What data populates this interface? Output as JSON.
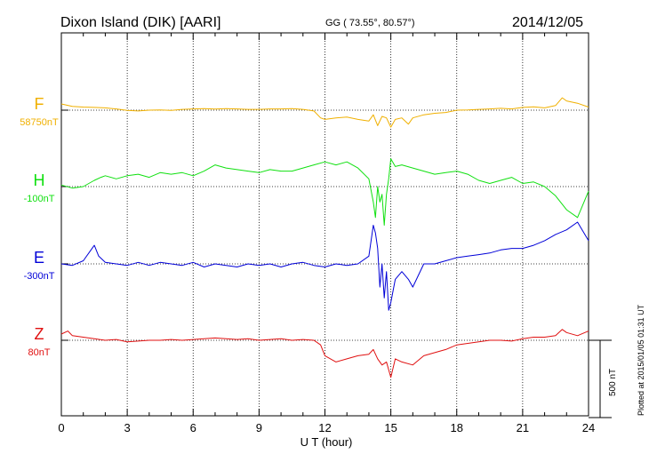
{
  "header": {
    "station": "Dixon Island (DIK)  [AARI]",
    "coords": "GG ( 73.55°,  80.57°)",
    "date": "2014/12/05"
  },
  "plotted_note": "Plotted at 2015/01/05 01:31  UT",
  "scale_label": "500 nT",
  "colors": {
    "F": "#f0b000",
    "H": "#10e010",
    "E": "#0000d8",
    "Z": "#e01010"
  },
  "chart_data": {
    "type": "line",
    "title": "Dixon Island (DIK)  [AARI]",
    "xlabel": "U T (hour)",
    "ylabel": "",
    "xlim": [
      0,
      24
    ],
    "xticks": [
      "0",
      "3",
      "6",
      "9",
      "12",
      "15",
      "18",
      "21",
      "24"
    ],
    "scale_nT": 500,
    "series": [
      {
        "name": "F",
        "baseline_label": "58750nT",
        "baseline": 58750,
        "x": [
          0,
          0.5,
          1,
          1.5,
          2,
          2.5,
          3,
          3.5,
          4,
          4.5,
          5,
          5.5,
          6,
          6.5,
          7,
          7.5,
          8,
          8.5,
          9,
          9.5,
          10,
          10.5,
          11,
          11.5,
          11.8,
          12,
          12.5,
          13,
          13.5,
          14,
          14.2,
          14.4,
          14.6,
          14.8,
          15,
          15.2,
          15.5,
          15.8,
          16,
          16.5,
          17,
          17.5,
          18,
          18.5,
          19,
          19.5,
          20,
          20.5,
          21,
          21.5,
          22,
          22.5,
          22.8,
          23,
          23.5,
          24
        ],
        "values": [
          58790,
          58775,
          58770,
          58768,
          58765,
          58758,
          58748,
          58745,
          58750,
          58752,
          58748,
          58755,
          58758,
          58760,
          58757,
          58760,
          58758,
          58755,
          58755,
          58758,
          58758,
          58760,
          58755,
          58745,
          58700,
          58690,
          58700,
          58705,
          58690,
          58680,
          58720,
          58650,
          58710,
          58700,
          58640,
          58690,
          58700,
          58660,
          58700,
          58720,
          58730,
          58735,
          58750,
          58752,
          58755,
          58758,
          58762,
          58758,
          58768,
          58772,
          58765,
          58780,
          58830,
          58810,
          58795,
          58770
        ]
      },
      {
        "name": "H",
        "baseline_label": "-100nT",
        "baseline": -100,
        "x": [
          0,
          0.5,
          1,
          1.5,
          1.8,
          2,
          2.5,
          3,
          3.5,
          4,
          4.5,
          5,
          5.5,
          6,
          6.5,
          7,
          7.5,
          8,
          8.5,
          9,
          9.5,
          10,
          10.5,
          11,
          11.5,
          12,
          12.5,
          13,
          13.5,
          14,
          14.2,
          14.3,
          14.4,
          14.5,
          14.6,
          14.7,
          14.8,
          14.9,
          15,
          15.2,
          15.5,
          16,
          16.5,
          17,
          17.5,
          18,
          18.5,
          19,
          19.5,
          20,
          20.5,
          21,
          21.5,
          22,
          22.5,
          23,
          23.5,
          24
        ],
        "values": [
          -90,
          -110,
          -100,
          -60,
          -40,
          -30,
          -50,
          -30,
          -20,
          -40,
          -10,
          -20,
          -10,
          -30,
          0,
          40,
          20,
          10,
          0,
          -10,
          10,
          0,
          0,
          20,
          40,
          60,
          40,
          60,
          20,
          -50,
          -200,
          -300,
          -100,
          -200,
          -150,
          -350,
          -150,
          -50,
          80,
          30,
          40,
          20,
          0,
          -20,
          -10,
          0,
          -20,
          -60,
          -80,
          -60,
          -40,
          -80,
          -70,
          -100,
          -160,
          -250,
          -300,
          -130
        ]
      },
      {
        "name": "E",
        "baseline_label": "-300nT",
        "baseline": -300,
        "x": [
          0,
          0.5,
          1,
          1.3,
          1.5,
          1.7,
          2,
          2.5,
          3,
          3.5,
          4,
          4.5,
          5,
          5.5,
          6,
          6.5,
          7,
          7.5,
          8,
          8.5,
          9,
          9.5,
          10,
          10.5,
          11,
          11.5,
          12,
          12.5,
          13,
          13.5,
          14,
          14.2,
          14.3,
          14.4,
          14.5,
          14.6,
          14.7,
          14.8,
          14.9,
          15,
          15.2,
          15.5,
          15.8,
          16,
          16.5,
          17,
          17.5,
          18,
          18.5,
          19,
          19.5,
          20,
          20.5,
          21,
          21.5,
          22,
          22.5,
          23,
          23.5,
          24
        ],
        "values": [
          -300,
          -310,
          -280,
          -220,
          -180,
          -250,
          -290,
          -300,
          -310,
          -290,
          -310,
          -290,
          -300,
          -310,
          -290,
          -320,
          -300,
          -310,
          -320,
          -300,
          -310,
          -300,
          -320,
          -300,
          -290,
          -310,
          -320,
          -300,
          -310,
          -300,
          -250,
          -50,
          -100,
          -200,
          -450,
          -300,
          -520,
          -350,
          -600,
          -550,
          -400,
          -350,
          -400,
          -450,
          -300,
          -300,
          -280,
          -260,
          -250,
          -240,
          -230,
          -210,
          -200,
          -200,
          -180,
          -150,
          -110,
          -80,
          -30,
          -150
        ]
      },
      {
        "name": "Z",
        "baseline_label": "80nT",
        "baseline": 80,
        "x": [
          0,
          0.3,
          0.5,
          1,
          1.5,
          2,
          2.5,
          3,
          3.5,
          4,
          4.5,
          5,
          5.5,
          6,
          6.5,
          7,
          7.5,
          8,
          8.5,
          9,
          9.5,
          10,
          10.5,
          11,
          11.5,
          11.8,
          12,
          12.5,
          13,
          13.5,
          14,
          14.2,
          14.4,
          14.6,
          14.8,
          15,
          15.2,
          15.5,
          16,
          16.5,
          17,
          17.5,
          18,
          18.5,
          19,
          19.5,
          20,
          20.5,
          21,
          21.5,
          22,
          22.5,
          22.8,
          23,
          23.5,
          24
        ],
        "values": [
          120,
          140,
          110,
          100,
          90,
          80,
          85,
          70,
          75,
          80,
          80,
          85,
          80,
          85,
          90,
          95,
          90,
          85,
          90,
          80,
          85,
          90,
          80,
          85,
          80,
          50,
          -20,
          -60,
          -40,
          -20,
          -10,
          20,
          -40,
          -80,
          -60,
          -160,
          -40,
          -60,
          -80,
          -20,
          0,
          20,
          50,
          60,
          70,
          80,
          80,
          75,
          90,
          100,
          100,
          110,
          150,
          130,
          110,
          140
        ]
      }
    ]
  }
}
